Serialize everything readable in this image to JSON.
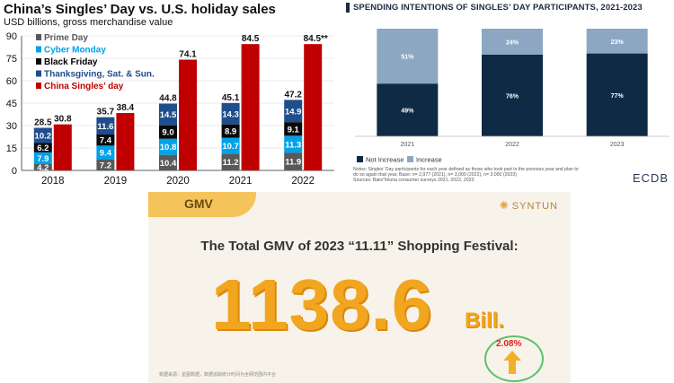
{
  "colors": {
    "prime_day": "#595959",
    "cyber_monday": "#00a2e8",
    "black_friday": "#0a0a0a",
    "thanksgiving": "#1f4e8c",
    "singles_day": "#c00000",
    "not_increase": "#0f2a44",
    "increase": "#8da6c2",
    "gmv_orange": "#f2a51e"
  },
  "chart_data": [
    {
      "type": "bar",
      "title": "China’s Singles’ Day vs. U.S. holiday sales",
      "subtitle": "USD billions, gross merchandise value",
      "categories": [
        "2018",
        "2019",
        "2020",
        "2021",
        "2022"
      ],
      "ylim": [
        0,
        90
      ],
      "yticks": [
        "0",
        "15",
        "30",
        "45",
        "60",
        "75",
        "90"
      ],
      "stacked_group": {
        "series": [
          {
            "name": "Prime Day",
            "values": [
              4.2,
              7.2,
              10.4,
              11.2,
              11.9
            ],
            "labels": [
              "4.2",
              "7.2",
              "10.4",
              "11.2",
              "11.9"
            ]
          },
          {
            "name": "Cyber Monday",
            "values": [
              7.9,
              9.4,
              10.8,
              10.7,
              11.3
            ],
            "labels": [
              "7.9",
              "9.4",
              "10.8",
              "10.7",
              "11.3"
            ]
          },
          {
            "name": "Black Friday",
            "values": [
              6.2,
              7.4,
              9.0,
              8.9,
              9.1
            ],
            "labels": [
              "6.2",
              "7.4",
              "9.0",
              "8.9",
              "9.1"
            ]
          },
          {
            "name": "Thanksgiving, Sat. & Sun.",
            "values": [
              10.2,
              11.6,
              14.5,
              14.3,
              14.9
            ],
            "labels": [
              "10.2",
              "11.6",
              "14.5",
              "14.3",
              "14.9"
            ]
          }
        ],
        "totals": [
          "28.5",
          "35.7",
          "44.8",
          "45.1",
          "47.2"
        ]
      },
      "separate_series": {
        "name": "China Singles’ day",
        "values": [
          30.8,
          38.4,
          74.1,
          84.5,
          84.5
        ],
        "labels": [
          "30.8",
          "38.4",
          "74.1",
          "84.5",
          "84.5**"
        ]
      },
      "legend_position": "top-left"
    },
    {
      "type": "bar",
      "title": "SPENDING INTENTIONS OF SINGLES’ DAY PARTICIPANTS, 2021-2023",
      "categories": [
        "2021",
        "2022",
        "2023"
      ],
      "series": [
        {
          "name": "Not Increase",
          "values": [
            49,
            76,
            77
          ],
          "labels": [
            "49%",
            "76%",
            "77%"
          ]
        },
        {
          "name": "Increase",
          "values": [
            51,
            24,
            23
          ],
          "labels": [
            "51%",
            "24%",
            "23%"
          ]
        }
      ],
      "ylim": [
        0,
        100
      ],
      "legend_position": "bottom-left",
      "notes": [
        "Notes: Singles’ Day participants for each year defined as those who took part in the previous year and plan to",
        "do so again that year. Base: n= 2,977 (2021), n= 3,000 (2022), n= 3,000 (2023)",
        "Sources: Bain/Toluna consumer surveys 2021, 2022, 2023"
      ],
      "brand": "ECDB"
    }
  ],
  "gmv_panel": {
    "badge": "GMV",
    "logo": "SYNTUN",
    "headline": "The Total GMV of 2023  “11.11” Shopping Festival:",
    "value": "1138.6",
    "unit": "Bill.",
    "growth": "2.08%",
    "footnote": "数据来源：星图数据，数据追踪统计时间为全网范围内平台"
  }
}
